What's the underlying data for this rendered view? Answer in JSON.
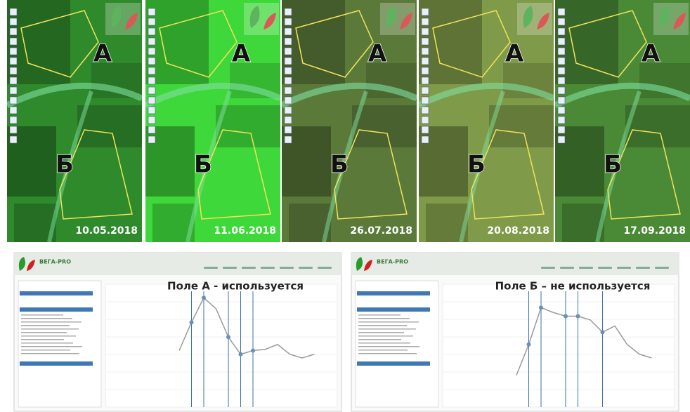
{
  "panels": [
    {
      "date": "10.05.2018",
      "label_a": "А",
      "label_b": "Б",
      "color": "#2f8a2c"
    },
    {
      "date": "11.06.2018",
      "label_a": "А",
      "label_b": "Б",
      "color": "#3fd83a"
    },
    {
      "date": "26.07.2018",
      "label_a": "А",
      "label_b": "Б",
      "color": "#5b7a3a"
    },
    {
      "date": "20.08.2018",
      "label_a": "А",
      "label_b": "Б",
      "color": "#7f9a48"
    },
    {
      "date": "17.09.2018",
      "label_a": "А",
      "label_b": "Б",
      "color": "#4a8a36"
    }
  ],
  "screens": [
    {
      "app_name": "ВЕГА-PRO",
      "chart": {
        "title": "Поле А - используется",
        "ylim": [
          0,
          1
        ],
        "values": [
          0.46,
          0.69,
          0.89,
          0.8,
          0.57,
          0.43,
          0.46,
          0.47,
          0.51,
          0.43,
          0.4,
          0.43
        ],
        "markers": [
          1,
          2,
          4,
          5,
          6
        ],
        "color": "#999999"
      }
    },
    {
      "app_name": "ВЕГА-PRO",
      "chart": {
        "title": "Поле Б – не используется",
        "ylim": [
          0,
          1
        ],
        "values": [
          0.26,
          0.51,
          0.81,
          0.77,
          0.74,
          0.74,
          0.71,
          0.61,
          0.66,
          0.51,
          0.43,
          0.4
        ],
        "markers": [
          1,
          2,
          4,
          5,
          7
        ],
        "color": "#999999"
      }
    }
  ]
}
